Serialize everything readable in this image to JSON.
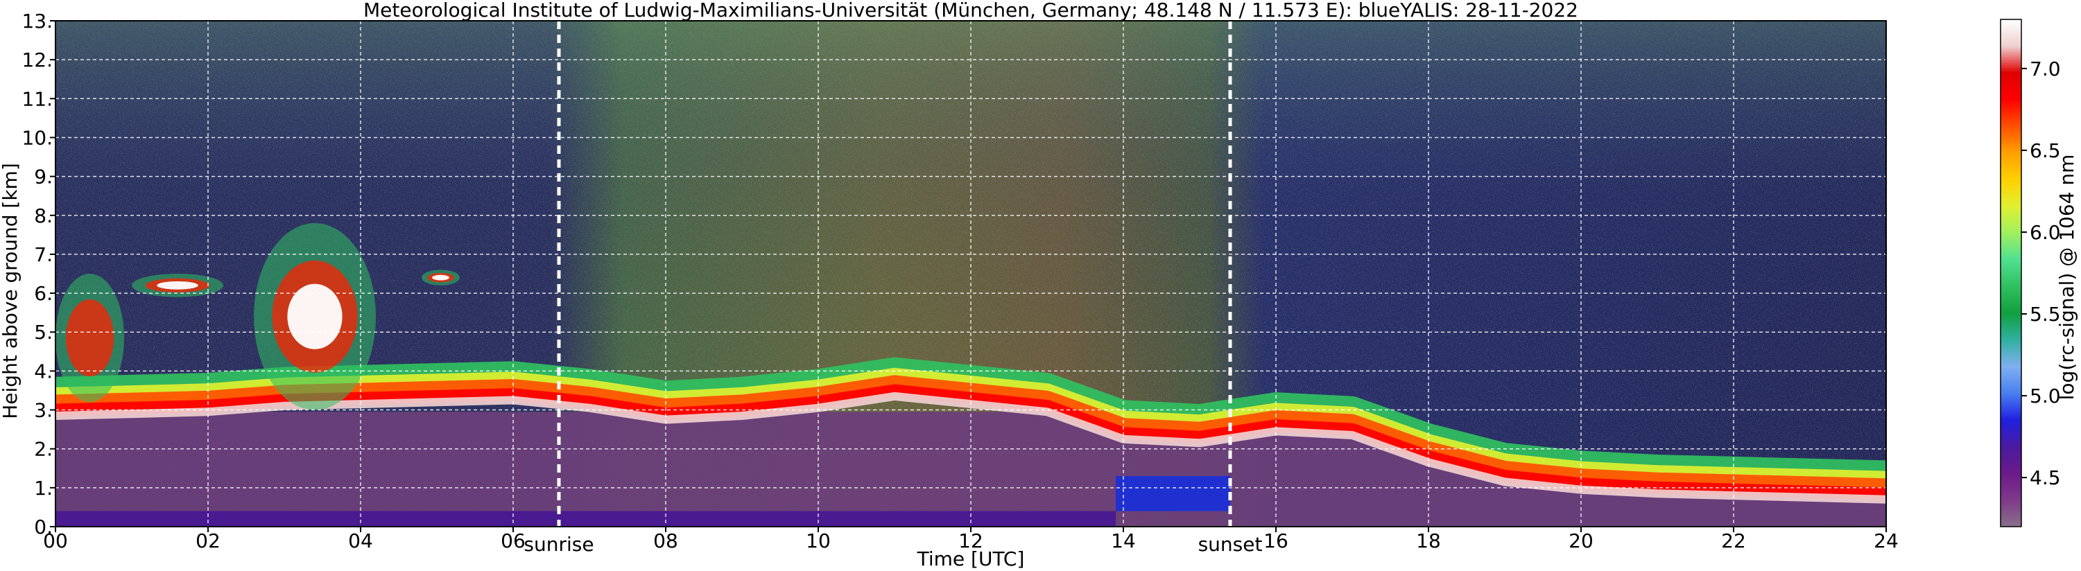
{
  "chart_data": {
    "type": "heatmap",
    "title": "Meteorological Institute of Ludwig-Maximilians-Universität (München, Germany; 48.148 N / 11.573 E):    blueYALIS: 28-11-2022",
    "xlabel": "Time [UTC]",
    "ylabel": "Height above ground [km]",
    "colorbar_label": "log(rc-signal) @ 1064 nm",
    "xlim": [
      0,
      24
    ],
    "ylim": [
      0,
      13
    ],
    "x_ticks": [
      0,
      2,
      4,
      6,
      8,
      10,
      12,
      14,
      16,
      18,
      20,
      22,
      24
    ],
    "x_tick_labels": [
      "00",
      "02",
      "04",
      "06",
      "08",
      "10",
      "12",
      "14",
      "16",
      "18",
      "20",
      "22",
      "24"
    ],
    "y_ticks": [
      0,
      1,
      2,
      3,
      4,
      5,
      6,
      7,
      8,
      9,
      10,
      11,
      12,
      13
    ],
    "y_tick_labels": [
      "0.",
      "1.",
      "2.",
      "3.",
      "4.",
      "5.",
      "6.",
      "7.",
      "8.",
      "9.",
      "10.",
      "11.",
      "12.",
      "13."
    ],
    "colorbar_range": [
      4.2,
      7.3
    ],
    "colorbar_ticks": [
      4.5,
      5.0,
      5.5,
      6.0,
      6.5,
      7.0
    ],
    "colorbar_tick_labels": [
      "4.5",
      "5.0",
      "5.5",
      "6.0",
      "6.5",
      "7.0"
    ],
    "grid": true,
    "annotations": [
      {
        "label": "sunrise",
        "x": 6.6
      },
      {
        "label": "sunset",
        "x": 15.4
      }
    ],
    "boundary_layer_top_km": {
      "t": [
        0,
        1,
        2,
        3,
        4,
        5,
        6,
        7,
        8,
        9,
        10,
        11,
        12,
        13,
        14,
        15,
        16,
        17,
        18,
        19,
        20,
        21,
        22,
        23,
        24
      ],
      "h": [
        3.0,
        3.05,
        3.1,
        3.25,
        3.3,
        3.35,
        3.4,
        3.2,
        2.9,
        3.0,
        3.2,
        3.5,
        3.3,
        3.1,
        2.4,
        2.3,
        2.6,
        2.5,
        1.8,
        1.3,
        1.1,
        1.0,
        0.95,
        0.9,
        0.85
      ]
    },
    "cloud_features": [
      {
        "t0": 0.0,
        "t1": 0.9,
        "h0": 3.2,
        "h1": 6.5,
        "kind": "aerosol"
      },
      {
        "t0": 1.0,
        "t1": 2.2,
        "h0": 5.9,
        "h1": 6.5,
        "kind": "cloud"
      },
      {
        "t0": 2.6,
        "t1": 4.2,
        "h0": 3.0,
        "h1": 7.8,
        "kind": "cloud"
      },
      {
        "t0": 4.8,
        "t1": 5.3,
        "h0": 6.2,
        "h1": 6.6,
        "kind": "cloud"
      }
    ],
    "colormap": [
      "#8a6f8a",
      "#7e3a8a",
      "#6b1a8a",
      "#4a1aa0",
      "#2020e0",
      "#4a80f0",
      "#7fb0f0",
      "#30b0a0",
      "#10a040",
      "#30c060",
      "#50e090",
      "#a0f060",
      "#e0f030",
      "#ffd000",
      "#ffa000",
      "#ff5000",
      "#ff0000",
      "#e00000",
      "#f0d0d0",
      "#ffffff"
    ]
  }
}
